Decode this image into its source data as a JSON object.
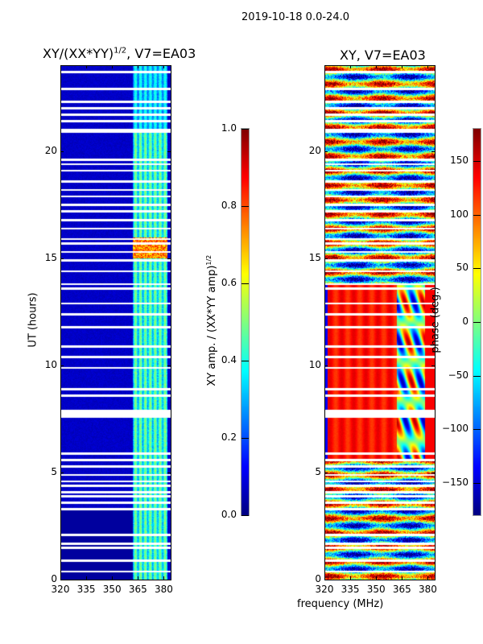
{
  "suptitle": "2019-10-18 0.0-24.0",
  "shared_xlabel": "frequency (MHz)",
  "chart_data": [
    {
      "type": "heatmap",
      "title": "XY/(XX*YY)",
      "title_sup": "1/2",
      "title_suffix": ", V7=EA03",
      "xlabel": "",
      "ylabel": "UT (hours)",
      "xlim": [
        320,
        384
      ],
      "ylim": [
        0,
        24
      ],
      "xticks": [
        320,
        335,
        350,
        365,
        380
      ],
      "yticks": [
        0,
        5,
        10,
        15,
        20
      ],
      "colormap": "jet",
      "colorbar": {
        "label": "XY amp. / (XX*YY amp)",
        "label_sup": "1/2",
        "range": [
          0.0,
          1.0
        ],
        "ticks": [
          "0.0",
          "0.2",
          "0.4",
          "0.6",
          "0.8",
          "1.0"
        ],
        "tick_values": [
          0,
          0.2,
          0.4,
          0.6,
          0.8,
          1.0
        ]
      },
      "description_values": {
        "background_level": 0.05,
        "bright_band_mhz": [
          362,
          382
        ],
        "bright_band_level": 0.4,
        "peak_hours": [
          15.0,
          16.0
        ],
        "peak_level": 0.85
      }
    },
    {
      "type": "heatmap",
      "title": "XY, V7=EA03",
      "xlabel": "frequency (MHz)",
      "ylabel": "",
      "xlim": [
        320,
        384
      ],
      "ylim": [
        0,
        24
      ],
      "xticks": [
        320,
        335,
        350,
        365,
        380
      ],
      "yticks": [
        0,
        5,
        10,
        15,
        20
      ],
      "colormap": "jet",
      "colorbar": {
        "label": "phase (deg.)",
        "range": [
          -180,
          180
        ],
        "ticks": [
          "−150",
          "−100",
          "−50",
          "0",
          "50",
          "100",
          "150"
        ],
        "tick_values": [
          -150,
          -100,
          -50,
          0,
          50,
          100,
          150
        ]
      },
      "description_values": {
        "stable_phase_hours": [
          5.6,
          13.8
        ],
        "stable_phase_deg": 140
      }
    }
  ],
  "flagged_hours": [
    0.4,
    0.9,
    1.5,
    1.7,
    2.1,
    3.3,
    3.6,
    3.9,
    4.1,
    4.4,
    4.6,
    4.9,
    5.3,
    5.6,
    5.9,
    7.6,
    7.7,
    7.8,
    7.9,
    8.6,
    8.9,
    9.9,
    10.4,
    10.9,
    11.8,
    12.4,
    12.9,
    13.6,
    13.8,
    14.4,
    14.9,
    15.3,
    15.7,
    15.9,
    16.4,
    16.8,
    17.2,
    17.5,
    17.9,
    18.2,
    18.6,
    19.1,
    19.4,
    19.6,
    20.9,
    21.0,
    21.4,
    21.7,
    22.0,
    22.3,
    22.9,
    23.7
  ]
}
